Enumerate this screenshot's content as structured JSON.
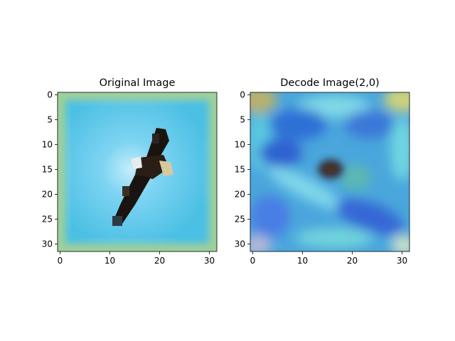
{
  "chart_data": [
    {
      "type": "heatmap",
      "title": "Original Image",
      "x_ticks": [
        "0",
        "10",
        "20",
        "30"
      ],
      "y_ticks": [
        "0",
        "5",
        "10",
        "15",
        "20",
        "25",
        "30"
      ],
      "x_tick_values": [
        0,
        10,
        20,
        30
      ],
      "y_tick_values": [
        0,
        5,
        10,
        15,
        20,
        25,
        30
      ],
      "xlim": [
        -0.5,
        31.5
      ],
      "ylim": [
        31.5,
        -0.5
      ],
      "image_size": [
        32,
        32
      ],
      "content": "Blurry 32x32 photo of a bald eagle in flight against a blue sky with a pale green border"
    },
    {
      "type": "heatmap",
      "title": "Decode Image(2,0)",
      "x_ticks": [
        "0",
        "10",
        "20",
        "30"
      ],
      "y_ticks": [
        "0",
        "5",
        "10",
        "15",
        "20",
        "25",
        "30"
      ],
      "x_tick_values": [
        0,
        10,
        20,
        30
      ],
      "y_tick_values": [
        0,
        5,
        10,
        15,
        20,
        25,
        30
      ],
      "xlim": [
        -0.5,
        31.5
      ],
      "ylim": [
        31.5,
        -0.5
      ],
      "image_size": [
        32,
        32
      ],
      "content": "Noisy reconstructed image dominated by blue and cyan patches with a dark smudge in the center"
    }
  ],
  "colors": {
    "original_border": "#9fd09a",
    "original_sky": "#4cc0e4",
    "original_center": "#c6eefc",
    "eagle_dark": "#1a1410",
    "eagle_light": "#d8c8a0",
    "decode_base": "#4aa6dc",
    "decode_cyan": "#6fd6e0",
    "decode_blue": "#2f6fd6",
    "decode_yellow": "#cfd27a"
  }
}
